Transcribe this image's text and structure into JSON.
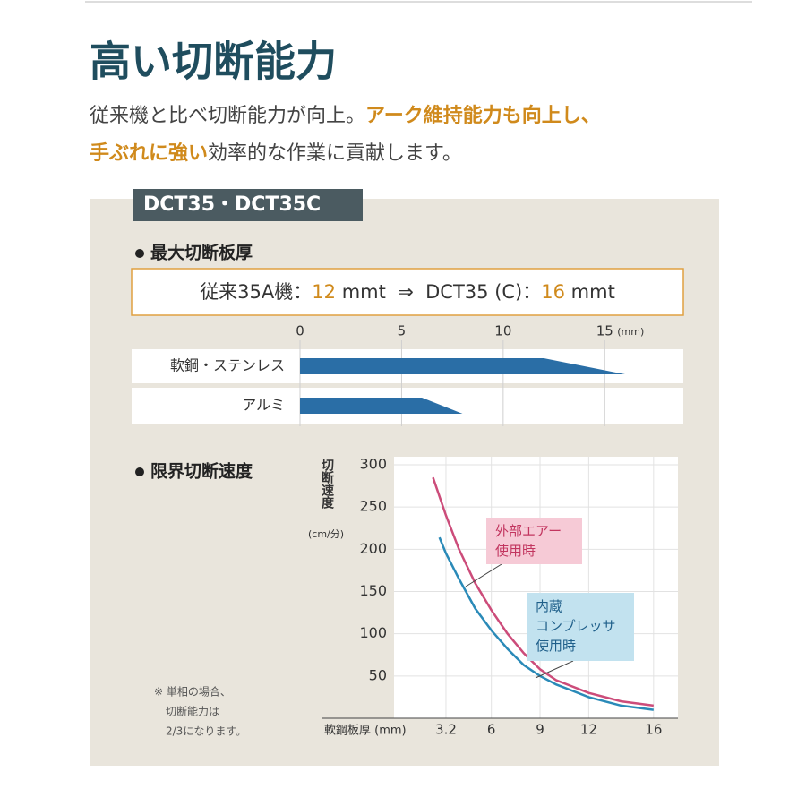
{
  "header": {
    "title": "高い切断能力",
    "lead": [
      [
        {
          "text": "従来機と比べ切断能力が向上。",
          "em": false
        },
        {
          "text": "アーク維持能力も向上し、",
          "em": true
        }
      ],
      [
        {
          "text": "手ぶれに強い",
          "em": true
        },
        {
          "text": "効率的な作業に貢献します。",
          "em": false
        }
      ]
    ]
  },
  "panel": {
    "model": "DCT35・DCT35C",
    "section1": "最大切断板厚",
    "spec": [
      {
        "text": "従来35A機：",
        "em": false
      },
      {
        "text": "12",
        "em": true
      },
      {
        "text": " mmt  ⇒  DCT35 (C)：",
        "em": false
      },
      {
        "text": "16",
        "em": true
      },
      {
        "text": " mmt",
        "em": false
      }
    ],
    "section2": "限界切断速度",
    "note": [
      "※ 単相の場合、",
      "切断能力は",
      "2/3になります。"
    ]
  },
  "chart_data": [
    {
      "type": "hbar",
      "categories": [
        "軟鋼・ステンレス",
        "アルミ"
      ],
      "flat_values": [
        12,
        6
      ],
      "values": [
        16,
        8
      ],
      "color": "#2a6ea6",
      "xlim": [
        0,
        19
      ],
      "xticks": [
        0,
        5,
        10,
        15
      ],
      "x_unit": "(mm)",
      "grid": true
    },
    {
      "type": "line",
      "y_label": "切断速度",
      "y_unit": "(cm/分)",
      "x_label": "軟鋼板厚 (mm)",
      "xlim": [
        0,
        17.5
      ],
      "ylim": [
        0,
        300
      ],
      "xticks": [
        3.2,
        6,
        9,
        12,
        16
      ],
      "yticks": [
        50,
        100,
        150,
        200,
        250,
        300
      ],
      "grid": true,
      "series": [
        {
          "name": "外部エアー\n使用時",
          "color": "#cc4c7a",
          "x": [
            2.4,
            3.2,
            4,
            5,
            6,
            7,
            8,
            9,
            10,
            12,
            14,
            16
          ],
          "values": [
            285,
            240,
            200,
            160,
            128,
            100,
            77,
            58,
            45,
            30,
            20,
            15
          ]
        },
        {
          "name": "内蔵\nコンプレッサ\n使用時",
          "color": "#2a8ab8",
          "x": [
            2.8,
            3.2,
            4,
            5,
            6,
            7,
            8,
            9,
            10,
            12,
            14,
            16
          ],
          "values": [
            214,
            195,
            165,
            130,
            104,
            82,
            63,
            50,
            40,
            25,
            15,
            10
          ]
        }
      ]
    }
  ]
}
